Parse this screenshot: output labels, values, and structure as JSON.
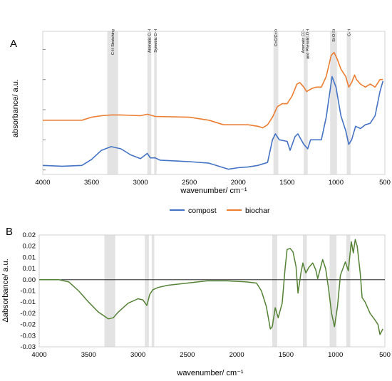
{
  "figure": {
    "panel_a_label": "A",
    "panel_b_label": "B"
  },
  "chart_data": [
    {
      "type": "line",
      "panel": "A",
      "xlabel": "wavenumber/ cm⁻¹",
      "ylabel": "absorbance/ a.u.",
      "xlim": [
        4000,
        500
      ],
      "x_ticks": [
        "4000",
        "3500",
        "3000",
        "2500",
        "2000",
        "1500",
        "1000",
        "500"
      ],
      "y_tick_labels_shown": false,
      "grid": false,
      "legend_position": "bottom",
      "bands": [
        {
          "label": "C-H Stretching",
          "from": 3340,
          "to": 3230
        },
        {
          "label": "Aromatic C-H",
          "from": 2930,
          "to": 2890
        },
        {
          "label": "Symetric C-H",
          "from": 2860,
          "to": 2835
        },
        {
          "label": "C=C/C=O",
          "from": 1640,
          "to": 1590
        },
        {
          "label": "Aromatic CO- and Phenolic-OH",
          "from": 1330,
          "to": 1290
        },
        {
          "label": "Si-O-Si",
          "from": 1060,
          "to": 990
        },
        {
          "label": "C-H",
          "from": 890,
          "to": 850
        }
      ],
      "series": [
        {
          "name": "compost",
          "color": "#4472C4",
          "points": [
            [
              4000,
              0.03
            ],
            [
              3800,
              0.025
            ],
            [
              3600,
              0.03
            ],
            [
              3500,
              0.07
            ],
            [
              3400,
              0.13
            ],
            [
              3300,
              0.155
            ],
            [
              3200,
              0.14
            ],
            [
              3100,
              0.1
            ],
            [
              3000,
              0.075
            ],
            [
              2930,
              0.11
            ],
            [
              2900,
              0.08
            ],
            [
              2850,
              0.08
            ],
            [
              2800,
              0.065
            ],
            [
              2500,
              0.055
            ],
            [
              2300,
              0.045
            ],
            [
              2200,
              0.025
            ],
            [
              2100,
              0.005
            ],
            [
              2000,
              0.015
            ],
            [
              1900,
              0.02
            ],
            [
              1800,
              0.03
            ],
            [
              1700,
              0.05
            ],
            [
              1650,
              0.2
            ],
            [
              1620,
              0.24
            ],
            [
              1580,
              0.2
            ],
            [
              1500,
              0.19
            ],
            [
              1470,
              0.13
            ],
            [
              1420,
              0.22
            ],
            [
              1390,
              0.24
            ],
            [
              1330,
              0.17
            ],
            [
              1290,
              0.14
            ],
            [
              1260,
              0.2
            ],
            [
              1200,
              0.2
            ],
            [
              1150,
              0.2
            ],
            [
              1100,
              0.35
            ],
            [
              1040,
              0.62
            ],
            [
              1000,
              0.55
            ],
            [
              950,
              0.36
            ],
            [
              900,
              0.26
            ],
            [
              870,
              0.17
            ],
            [
              840,
              0.2
            ],
            [
              800,
              0.29
            ],
            [
              750,
              0.275
            ],
            [
              700,
              0.3
            ],
            [
              650,
              0.31
            ],
            [
              600,
              0.36
            ],
            [
              550,
              0.52
            ],
            [
              520,
              0.59
            ]
          ]
        },
        {
          "name": "biochar",
          "color": "#ED7D31",
          "points": [
            [
              4000,
              0.33
            ],
            [
              3800,
              0.33
            ],
            [
              3600,
              0.33
            ],
            [
              3500,
              0.35
            ],
            [
              3400,
              0.36
            ],
            [
              3300,
              0.365
            ],
            [
              3200,
              0.365
            ],
            [
              3000,
              0.36
            ],
            [
              2930,
              0.37
            ],
            [
              2850,
              0.355
            ],
            [
              2500,
              0.35
            ],
            [
              2300,
              0.33
            ],
            [
              2150,
              0.3
            ],
            [
              2000,
              0.3
            ],
            [
              1900,
              0.3
            ],
            [
              1800,
              0.29
            ],
            [
              1750,
              0.28
            ],
            [
              1700,
              0.3
            ],
            [
              1650,
              0.35
            ],
            [
              1600,
              0.42
            ],
            [
              1550,
              0.44
            ],
            [
              1500,
              0.44
            ],
            [
              1450,
              0.49
            ],
            [
              1400,
              0.57
            ],
            [
              1370,
              0.58
            ],
            [
              1330,
              0.55
            ],
            [
              1300,
              0.52
            ],
            [
              1250,
              0.54
            ],
            [
              1200,
              0.55
            ],
            [
              1150,
              0.55
            ],
            [
              1100,
              0.62
            ],
            [
              1050,
              0.76
            ],
            [
              1020,
              0.78
            ],
            [
              990,
              0.74
            ],
            [
              950,
              0.67
            ],
            [
              900,
              0.62
            ],
            [
              870,
              0.55
            ],
            [
              840,
              0.58
            ],
            [
              810,
              0.63
            ],
            [
              790,
              0.6
            ],
            [
              750,
              0.57
            ],
            [
              700,
              0.55
            ],
            [
              650,
              0.57
            ],
            [
              600,
              0.55
            ],
            [
              550,
              0.6
            ],
            [
              520,
              0.6
            ]
          ]
        }
      ]
    },
    {
      "type": "line",
      "panel": "B",
      "xlabel": "wavenumber/ cm⁻¹",
      "ylabel": "Δabsorbance/ a.u.",
      "xlim": [
        4000,
        500
      ],
      "ylim": [
        -0.03,
        0.02
      ],
      "x_ticks": [
        "4000",
        "3500",
        "3000",
        "2500",
        "2000",
        "1500",
        "1000",
        "500"
      ],
      "y_ticks": [
        "0.02",
        "0.02",
        "0.01",
        "0.01",
        "0.00",
        "-0.01",
        "-0.01",
        "-0.02",
        "-0.02",
        "-0.03",
        "-0.03"
      ],
      "grid": false,
      "series": [
        {
          "color": "#548235",
          "points": [
            [
              4000,
              0
            ],
            [
              3800,
              0
            ],
            [
              3700,
              -0.001
            ],
            [
              3600,
              -0.005
            ],
            [
              3500,
              -0.01
            ],
            [
              3400,
              -0.0145
            ],
            [
              3300,
              -0.0175
            ],
            [
              3250,
              -0.017
            ],
            [
              3200,
              -0.0145
            ],
            [
              3100,
              -0.0105
            ],
            [
              3000,
              -0.0085
            ],
            [
              2950,
              -0.009
            ],
            [
              2910,
              -0.0115
            ],
            [
              2880,
              -0.0065
            ],
            [
              2850,
              -0.0045
            ],
            [
              2800,
              -0.0035
            ],
            [
              2700,
              -0.0025
            ],
            [
              2500,
              -0.0015
            ],
            [
              2300,
              -0.0005
            ],
            [
              2100,
              -0.0005
            ],
            [
              1900,
              -0.001
            ],
            [
              1800,
              -0.0015
            ],
            [
              1750,
              -0.005
            ],
            [
              1700,
              -0.012
            ],
            [
              1660,
              -0.022
            ],
            [
              1640,
              -0.021
            ],
            [
              1610,
              -0.0125
            ],
            [
              1580,
              -0.017
            ],
            [
              1540,
              -0.0105
            ],
            [
              1510,
              0.005
            ],
            [
              1490,
              0.0135
            ],
            [
              1460,
              0.014
            ],
            [
              1430,
              0.0125
            ],
            [
              1400,
              0.006
            ],
            [
              1380,
              -0.006
            ],
            [
              1350,
              0.003
            ],
            [
              1330,
              0.0075
            ],
            [
              1300,
              0.003
            ],
            [
              1270,
              0.0055
            ],
            [
              1230,
              0.0075
            ],
            [
              1200,
              0.0045
            ],
            [
              1180,
              0.0005
            ],
            [
              1130,
              0.009
            ],
            [
              1100,
              0.005
            ],
            [
              1070,
              -0.004
            ],
            [
              1040,
              -0.015
            ],
            [
              1010,
              -0.021
            ],
            [
              980,
              -0.012
            ],
            [
              950,
              0.002
            ],
            [
              900,
              0.008
            ],
            [
              870,
              0.004
            ],
            [
              840,
              0.017
            ],
            [
              820,
              0.012
            ],
            [
              800,
              0.018
            ],
            [
              780,
              0.015
            ],
            [
              750,
              0.003
            ],
            [
              730,
              -0.008
            ],
            [
              700,
              -0.01
            ],
            [
              650,
              -0.015
            ],
            [
              600,
              -0.018
            ],
            [
              570,
              -0.02
            ],
            [
              550,
              -0.0245
            ],
            [
              520,
              -0.022
            ]
          ]
        }
      ]
    }
  ]
}
